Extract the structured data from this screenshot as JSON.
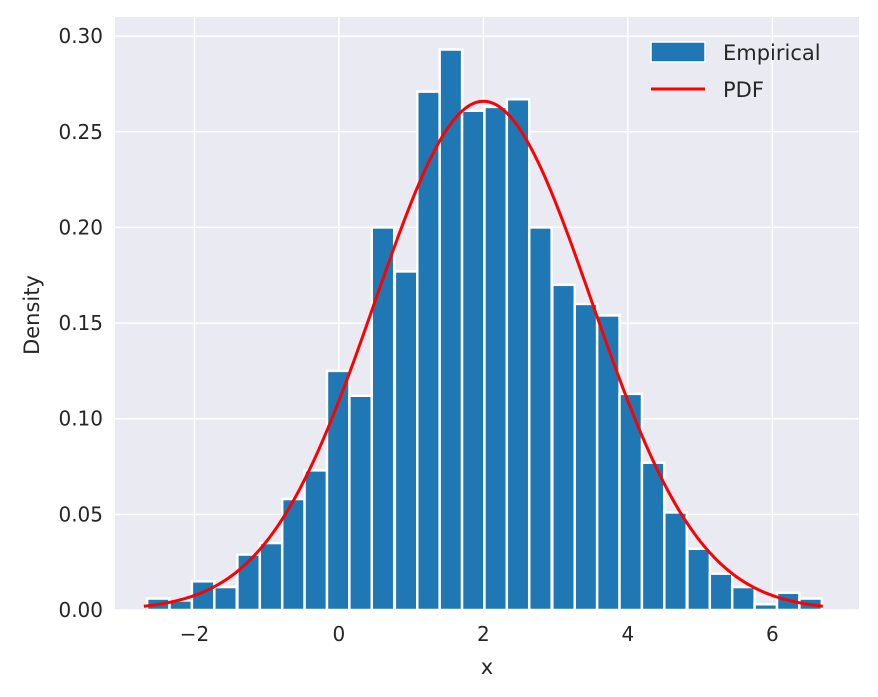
{
  "chart_data": {
    "type": "bar",
    "title": "",
    "xlabel": "x",
    "ylabel": "Density",
    "xlim": [
      -3.1,
      7.2
    ],
    "ylim": [
      0,
      0.31
    ],
    "grid": true,
    "legend_position": "top-right",
    "x_ticks": [
      {
        "value": -2,
        "label": "−2"
      },
      {
        "value": 0,
        "label": "0"
      },
      {
        "value": 2,
        "label": "2"
      },
      {
        "value": 4,
        "label": "4"
      },
      {
        "value": 6,
        "label": "6"
      }
    ],
    "y_ticks": [
      {
        "value": 0.0,
        "label": "0.00"
      },
      {
        "value": 0.05,
        "label": "0.05"
      },
      {
        "value": 0.1,
        "label": "0.10"
      },
      {
        "value": 0.15,
        "label": "0.15"
      },
      {
        "value": 0.2,
        "label": "0.20"
      },
      {
        "value": 0.25,
        "label": "0.25"
      },
      {
        "value": 0.3,
        "label": "0.30"
      }
    ],
    "series": [
      {
        "name": "Empirical",
        "kind": "histogram",
        "color": "#1f77b4",
        "bin_width": 0.311,
        "bin_centers": [
          -2.5,
          -2.19,
          -1.88,
          -1.57,
          -1.25,
          -0.94,
          -0.63,
          -0.32,
          -0.01,
          0.3,
          0.61,
          0.93,
          1.24,
          1.55,
          1.86,
          2.17,
          2.48,
          2.79,
          3.11,
          3.42,
          3.73,
          4.04,
          4.35,
          4.66,
          4.98,
          5.29,
          5.6,
          5.91,
          6.22,
          6.53
        ],
        "values": [
          0.006,
          0.005,
          0.015,
          0.012,
          0.029,
          0.035,
          0.058,
          0.073,
          0.125,
          0.112,
          0.2,
          0.177,
          0.271,
          0.293,
          0.261,
          0.263,
          0.267,
          0.2,
          0.17,
          0.16,
          0.154,
          0.113,
          0.077,
          0.051,
          0.032,
          0.019,
          0.012,
          0.003,
          0.009,
          0.006
        ]
      },
      {
        "name": "PDF",
        "kind": "line",
        "color": "#ff0000",
        "mean": 2.0,
        "std": 1.5,
        "x_range": [
          -2.7,
          6.7
        ]
      }
    ]
  }
}
